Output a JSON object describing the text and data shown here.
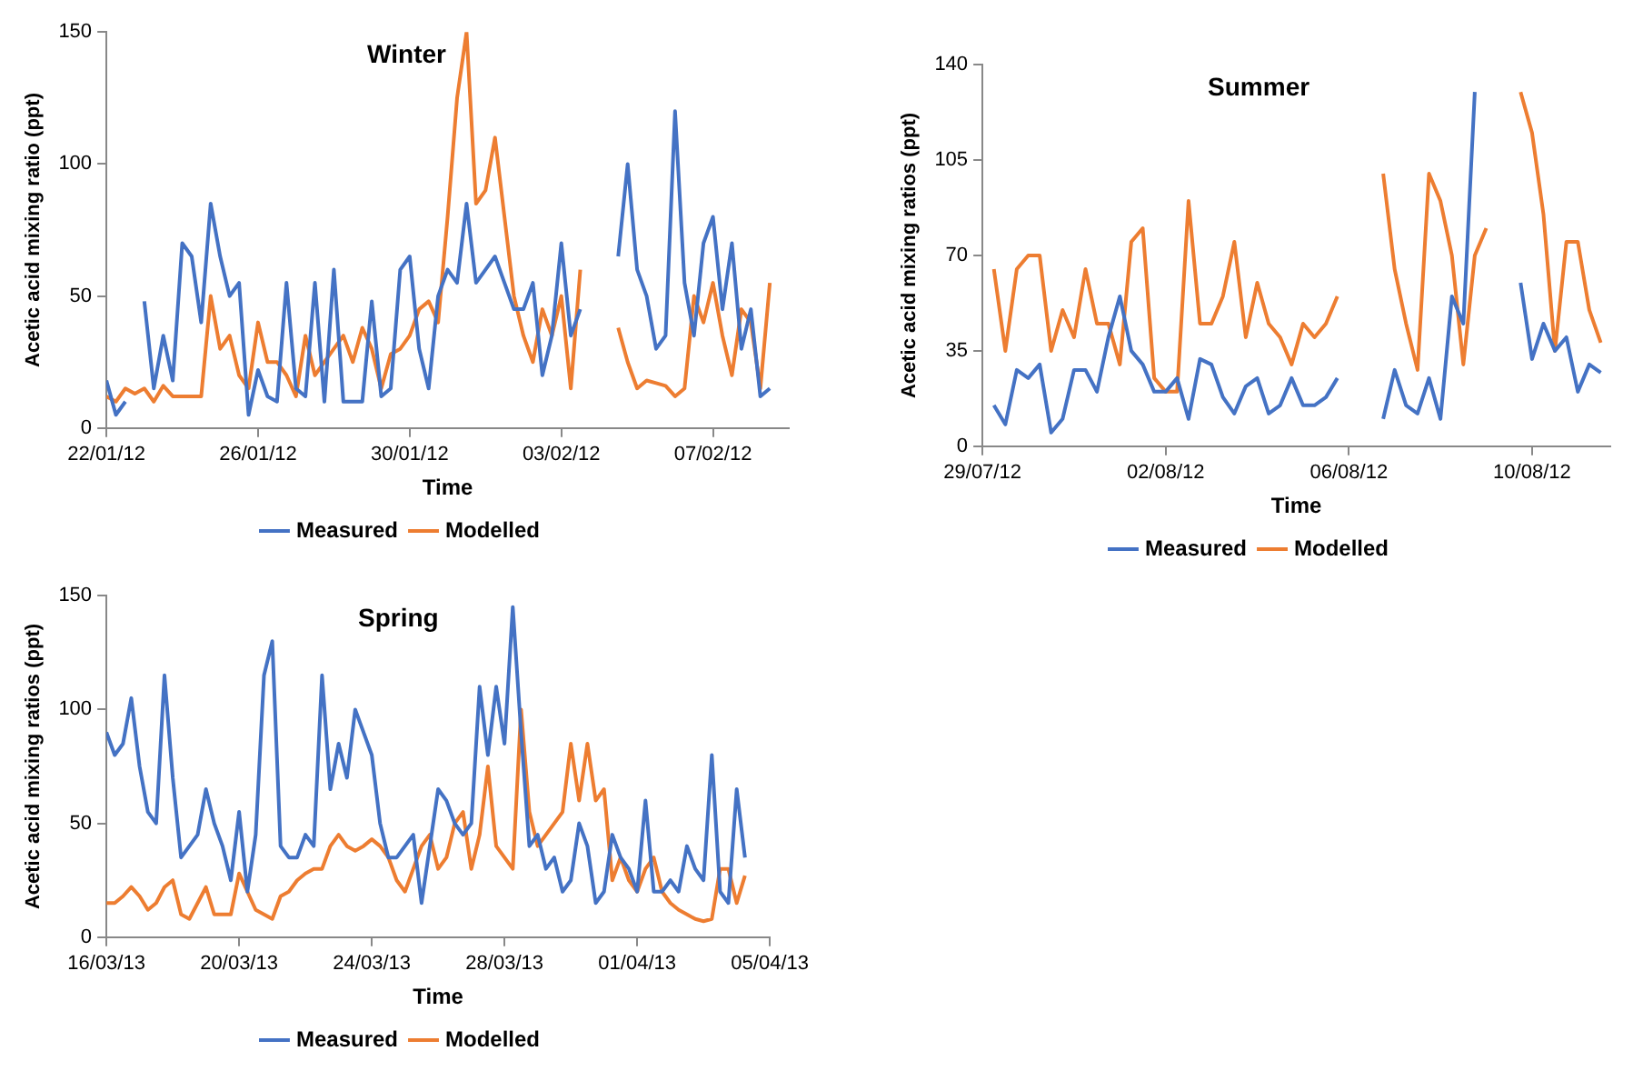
{
  "chart_data": [
    {
      "type": "line",
      "title": "Winter",
      "xlabel": "Time",
      "ylabel": "Acetic acid mixing ratio (ppt)",
      "legend": "bottom",
      "xlim": [
        "--01-22",
        "--02-09"
      ],
      "ylim": [
        0,
        150
      ],
      "yticks": [
        0,
        50,
        100,
        150
      ],
      "xticks": [
        {
          "value": "--01-22",
          "label": "22/01/12"
        },
        {
          "value": "--01-26",
          "label": "26/01/12"
        },
        {
          "value": "--01-30",
          "label": "30/01/12"
        },
        {
          "value": "--02-03",
          "label": "03/02/12"
        },
        {
          "value": "--02-07",
          "label": "07/02/12"
        }
      ],
      "x": [
        "--01-22T00:00",
        "--01-22T06:00",
        "--01-22T12:00",
        "--01-22T18:00",
        "--01-23T00:00",
        "--01-23T06:00",
        "--01-23T12:00",
        "--01-23T18:00",
        "--01-24T00:00",
        "--01-24T06:00",
        "--01-24T12:00",
        "--01-24T18:00",
        "--01-25T00:00",
        "--01-25T06:00",
        "--01-25T12:00",
        "--01-25T18:00",
        "--01-26T00:00",
        "--01-26T06:00",
        "--01-26T12:00",
        "--01-26T18:00",
        "--01-27T00:00",
        "--01-27T06:00",
        "--01-27T12:00",
        "--01-27T18:00",
        "--01-28T00:00",
        "--01-28T06:00",
        "--01-28T12:00",
        "--01-28T18:00",
        "--01-29T00:00",
        "--01-29T06:00",
        "--01-29T12:00",
        "--01-29T18:00",
        "--01-30T00:00",
        "--01-30T06:00",
        "--01-30T12:00",
        "--01-30T18:00",
        "--01-31T00:00",
        "--01-31T06:00",
        "--01-31T12:00",
        "--01-31T18:00",
        "--02-01T00:00",
        "--02-01T06:00",
        "--02-01T12:00",
        "--02-01T18:00",
        "--02-02T00:00",
        "--02-02T06:00",
        "--02-02T12:00",
        "--02-02T18:00",
        "--02-03T00:00",
        "--02-03T06:00",
        "--02-03T12:00",
        "--02-03T18:00",
        "--02-04T00:00",
        "--02-04T06:00",
        "--02-04T12:00",
        "--02-04T18:00",
        "--02-05T00:00",
        "--02-05T06:00",
        "--02-05T12:00",
        "--02-05T18:00",
        "--02-06T00:00",
        "--02-06T06:00",
        "--02-06T12:00",
        "--02-06T18:00",
        "--02-07T00:00",
        "--02-07T06:00",
        "--02-07T12:00",
        "--02-07T18:00",
        "--02-08T00:00",
        "--02-08T06:00",
        "--02-08T12:00"
      ],
      "series": [
        {
          "name": "Measured",
          "color": "#4472c4",
          "values": [
            18,
            5,
            10,
            null,
            48,
            15,
            35,
            18,
            70,
            65,
            40,
            85,
            65,
            50,
            55,
            5,
            22,
            12,
            10,
            55,
            15,
            12,
            55,
            10,
            60,
            10,
            10,
            10,
            48,
            12,
            15,
            60,
            65,
            30,
            15,
            50,
            60,
            55,
            85,
            55,
            60,
            65,
            55,
            45,
            45,
            55,
            20,
            35,
            70,
            35,
            45,
            null,
            null,
            null,
            65,
            100,
            60,
            50,
            30,
            35,
            120,
            55,
            35,
            70,
            80,
            45,
            70,
            30,
            45,
            12,
            15
          ]
        },
        {
          "name": "Modelled",
          "color": "#ed7d31",
          "values": [
            12,
            10,
            15,
            13,
            15,
            10,
            16,
            12,
            12,
            12,
            12,
            50,
            30,
            35,
            20,
            15,
            40,
            25,
            25,
            20,
            12,
            35,
            20,
            25,
            30,
            35,
            25,
            38,
            30,
            15,
            28,
            30,
            35,
            45,
            48,
            40,
            80,
            125,
            150,
            85,
            90,
            110,
            80,
            50,
            35,
            25,
            45,
            35,
            50,
            15,
            60,
            null,
            null,
            null,
            38,
            25,
            15,
            18,
            17,
            16,
            12,
            15,
            50,
            40,
            55,
            35,
            20,
            45,
            40,
            15,
            55
          ]
        }
      ]
    },
    {
      "type": "line",
      "title": "Summer",
      "xlabel": "Time",
      "ylabel": "Acetic acid mixing ratios (ppt)",
      "legend": "bottom",
      "xlim": [
        "--07-29",
        "--08-11T17:00"
      ],
      "ylim": [
        0,
        140
      ],
      "yticks": [
        0,
        35,
        70,
        105,
        140
      ],
      "xticks": [
        {
          "value": "--07-29",
          "label": "29/07/12"
        },
        {
          "value": "--08-02",
          "label": "02/08/12"
        },
        {
          "value": "--08-06",
          "label": "06/08/12"
        },
        {
          "value": "--08-10",
          "label": "10/08/12"
        }
      ],
      "x": [
        "--07-29T06:00",
        "--07-29T12:00",
        "--07-29T18:00",
        "--07-30T00:00",
        "--07-30T06:00",
        "--07-30T12:00",
        "--07-30T18:00",
        "--07-31T00:00",
        "--07-31T06:00",
        "--07-31T12:00",
        "--07-31T18:00",
        "--08-01T00:00",
        "--08-01T06:00",
        "--08-01T12:00",
        "--08-01T18:00",
        "--08-02T00:00",
        "--08-02T06:00",
        "--08-02T12:00",
        "--08-02T18:00",
        "--08-03T00:00",
        "--08-03T06:00",
        "--08-03T12:00",
        "--08-03T18:00",
        "--08-04T00:00",
        "--08-04T06:00",
        "--08-04T12:00",
        "--08-04T18:00",
        "--08-05T00:00",
        "--08-05T06:00",
        "--08-05T12:00",
        "--08-05T18:00",
        "--08-06T00:00",
        "--08-06T06:00",
        "--08-06T12:00",
        "--08-06T18:00",
        "--08-07T00:00",
        "--08-07T06:00",
        "--08-07T12:00",
        "--08-07T18:00",
        "--08-08T00:00",
        "--08-08T06:00",
        "--08-08T12:00",
        "--08-08T18:00",
        "--08-09T00:00",
        "--08-09T06:00",
        "--08-09T12:00",
        "--08-09T18:00",
        "--08-10T00:00",
        "--08-10T06:00",
        "--08-10T12:00",
        "--08-10T18:00",
        "--08-11T00:00",
        "--08-11T06:00",
        "--08-11T12:00"
      ],
      "series": [
        {
          "name": "Measured",
          "color": "#4472c4",
          "values": [
            15,
            8,
            28,
            25,
            30,
            5,
            10,
            28,
            28,
            20,
            40,
            55,
            35,
            30,
            20,
            20,
            25,
            10,
            32,
            30,
            18,
            12,
            22,
            25,
            12,
            15,
            25,
            15,
            15,
            18,
            25,
            null,
            null,
            null,
            10,
            28,
            15,
            12,
            25,
            10,
            55,
            45,
            130,
            null,
            null,
            null,
            60,
            32,
            45,
            35,
            40,
            20,
            30,
            27
          ]
        },
        {
          "name": "Modelled",
          "color": "#ed7d31",
          "values": [
            65,
            35,
            65,
            70,
            70,
            35,
            50,
            40,
            65,
            45,
            45,
            30,
            75,
            80,
            25,
            20,
            20,
            90,
            45,
            45,
            55,
            75,
            40,
            60,
            45,
            40,
            30,
            45,
            40,
            45,
            55,
            null,
            null,
            null,
            100,
            65,
            45,
            28,
            100,
            90,
            70,
            30,
            70,
            80,
            null,
            null,
            130,
            115,
            85,
            35,
            75,
            75,
            50,
            38
          ]
        }
      ]
    },
    {
      "type": "line",
      "title": "Spring",
      "xlabel": "Time",
      "ylabel": "Acetic acid mixing ratios (ppt)",
      "legend": "bottom",
      "xlim": [
        "--03-16",
        "--04-05"
      ],
      "ylim": [
        0,
        150
      ],
      "yticks": [
        0,
        50,
        100,
        150
      ],
      "xticks": [
        {
          "value": "--03-16",
          "label": "16/03/13"
        },
        {
          "value": "--03-20",
          "label": "20/03/13"
        },
        {
          "value": "--03-24",
          "label": "24/03/13"
        },
        {
          "value": "--03-28",
          "label": "28/03/13"
        },
        {
          "value": "--04-01",
          "label": "01/04/13"
        },
        {
          "value": "--04-05",
          "label": "05/04/13"
        }
      ],
      "x": [
        "--03-16T00:00",
        "--03-16T06:00",
        "--03-16T12:00",
        "--03-16T18:00",
        "--03-17T00:00",
        "--03-17T06:00",
        "--03-17T12:00",
        "--03-17T18:00",
        "--03-18T00:00",
        "--03-18T06:00",
        "--03-18T12:00",
        "--03-18T18:00",
        "--03-19T00:00",
        "--03-19T06:00",
        "--03-19T12:00",
        "--03-19T18:00",
        "--03-20T00:00",
        "--03-20T06:00",
        "--03-20T12:00",
        "--03-20T18:00",
        "--03-21T00:00",
        "--03-21T06:00",
        "--03-21T12:00",
        "--03-21T18:00",
        "--03-22T00:00",
        "--03-22T06:00",
        "--03-22T12:00",
        "--03-22T18:00",
        "--03-23T00:00",
        "--03-23T06:00",
        "--03-23T12:00",
        "--03-23T18:00",
        "--03-24T00:00",
        "--03-24T06:00",
        "--03-24T12:00",
        "--03-24T18:00",
        "--03-25T00:00",
        "--03-25T06:00",
        "--03-25T12:00",
        "--03-25T18:00",
        "--03-26T00:00",
        "--03-26T06:00",
        "--03-26T12:00",
        "--03-26T18:00",
        "--03-27T00:00",
        "--03-27T06:00",
        "--03-27T12:00",
        "--03-27T18:00",
        "--03-28T00:00",
        "--03-28T06:00",
        "--03-28T12:00",
        "--03-28T18:00",
        "--03-29T00:00",
        "--03-29T06:00",
        "--03-29T12:00",
        "--03-29T18:00",
        "--03-30T00:00",
        "--03-30T06:00",
        "--03-30T12:00",
        "--03-30T18:00",
        "--03-31T00:00",
        "--03-31T06:00",
        "--03-31T12:00",
        "--03-31T18:00",
        "--04-01T00:00",
        "--04-01T06:00",
        "--04-01T12:00",
        "--04-01T18:00",
        "--04-02T00:00",
        "--04-02T06:00",
        "--04-02T12:00",
        "--04-02T18:00",
        "--04-03T00:00",
        "--04-03T06:00",
        "--04-03T12:00",
        "--04-03T18:00",
        "--04-04T00:00",
        "--04-04T06:00"
      ],
      "series": [
        {
          "name": "Measured",
          "color": "#4472c4",
          "values": [
            90,
            80,
            85,
            105,
            75,
            55,
            50,
            115,
            70,
            35,
            40,
            45,
            65,
            50,
            40,
            25,
            55,
            20,
            45,
            115,
            130,
            40,
            35,
            35,
            45,
            40,
            115,
            65,
            85,
            70,
            100,
            90,
            80,
            50,
            35,
            35,
            40,
            45,
            15,
            40,
            65,
            60,
            50,
            45,
            50,
            110,
            80,
            110,
            85,
            145,
            90,
            40,
            45,
            30,
            35,
            20,
            25,
            50,
            40,
            15,
            20,
            45,
            35,
            30,
            20,
            60,
            20,
            20,
            25,
            20,
            40,
            30,
            25,
            80,
            20,
            15,
            65,
            35
          ]
        },
        {
          "name": "Modelled",
          "color": "#ed7d31",
          "values": [
            15,
            15,
            18,
            22,
            18,
            12,
            15,
            22,
            25,
            10,
            8,
            15,
            22,
            10,
            10,
            10,
            28,
            20,
            12,
            10,
            8,
            18,
            20,
            25,
            28,
            30,
            30,
            40,
            45,
            40,
            38,
            40,
            43,
            40,
            35,
            25,
            20,
            30,
            40,
            45,
            30,
            35,
            50,
            55,
            30,
            45,
            75,
            40,
            35,
            30,
            100,
            55,
            40,
            45,
            50,
            55,
            85,
            60,
            85,
            60,
            65,
            25,
            35,
            25,
            20,
            30,
            35,
            20,
            15,
            12,
            10,
            8,
            7,
            8,
            30,
            30,
            15,
            27
          ]
        }
      ]
    }
  ]
}
